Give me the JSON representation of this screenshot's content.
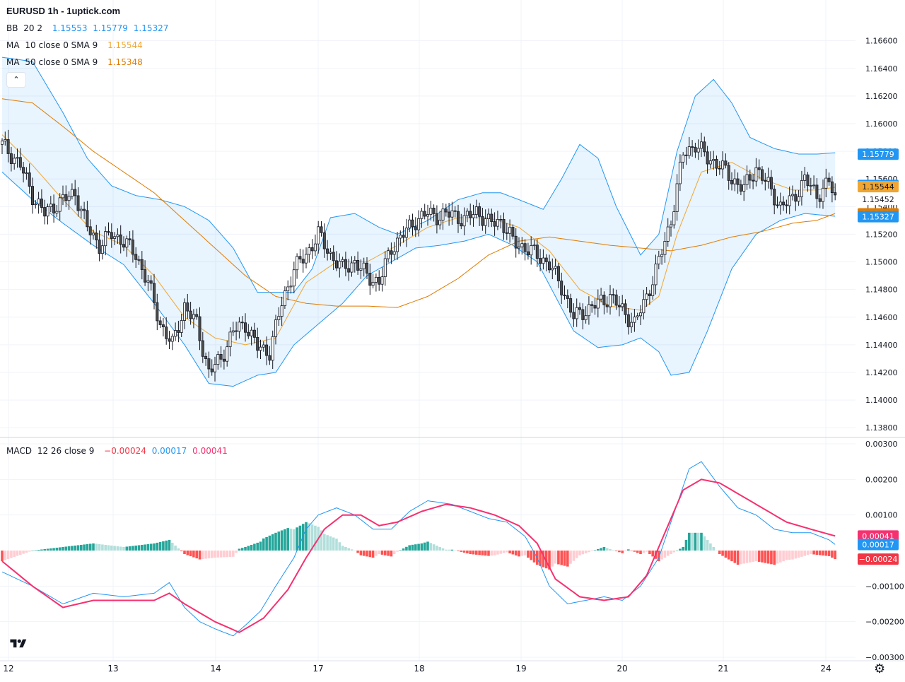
{
  "header": {
    "title": "EURUSD 1h - 1uptick.com",
    "bb": {
      "name": "BB",
      "params": "20 2",
      "values": [
        "1.15553",
        "1.15779",
        "1.15327"
      ],
      "color": "#2196f3"
    },
    "ma10": {
      "name": "MA",
      "params": "10 close 0 SMA 9",
      "value": "1.15544",
      "color": "#f0a630"
    },
    "ma50": {
      "name": "MA",
      "params": "50 close 0 SMA 9",
      "value": "1.15348",
      "color": "#e07b00"
    },
    "macd": {
      "name": "MACD",
      "params": "12 26 close 9",
      "values": [
        "−0.00024",
        "0.00017",
        "0.00041"
      ],
      "colors": [
        "#f23645",
        "#2196f3",
        "#f7306f"
      ]
    }
  },
  "icons": {
    "collapse": "chevron-up-icon",
    "logo": "tradingview-logo-icon",
    "settings": "gear-icon"
  },
  "chart_data": [
    {
      "type": "candlestick",
      "pane": "price",
      "symbol": "EURUSD",
      "interval": "1h",
      "ylim": [
        1.1375,
        1.1668
      ],
      "y_ticks": [
        "1.16600",
        "1.16400",
        "1.16200",
        "1.16000",
        "1.15800",
        "1.15600",
        "1.15400",
        "1.15200",
        "1.15000",
        "1.14800",
        "1.14600",
        "1.14400",
        "1.14200",
        "1.14000",
        "1.13800"
      ],
      "x_ticks": [
        "12",
        "13",
        "14",
        "17",
        "18",
        "19",
        "20",
        "21",
        "24"
      ],
      "close_path": [
        [
          0,
          1.1585
        ],
        [
          6,
          1.157
        ],
        [
          10,
          1.1548
        ],
        [
          14,
          1.1535
        ],
        [
          18,
          1.1542
        ],
        [
          24,
          1.155
        ],
        [
          28,
          1.1525
        ],
        [
          32,
          1.1512
        ],
        [
          36,
          1.152
        ],
        [
          40,
          1.1515
        ],
        [
          44,
          1.1505
        ],
        [
          48,
          1.1485
        ],
        [
          52,
          1.1455
        ],
        [
          56,
          1.144
        ],
        [
          60,
          1.1468
        ],
        [
          64,
          1.1455
        ],
        [
          68,
          1.142
        ],
        [
          72,
          1.143
        ],
        [
          76,
          1.145
        ],
        [
          80,
          1.1455
        ],
        [
          84,
          1.1438
        ],
        [
          88,
          1.1435
        ],
        [
          92,
          1.147
        ],
        [
          96,
          1.1495
        ],
        [
          100,
          1.1505
        ],
        [
          104,
          1.152
        ],
        [
          108,
          1.1505
        ],
        [
          112,
          1.1495
        ],
        [
          116,
          1.15
        ],
        [
          120,
          1.149
        ],
        [
          124,
          1.1485
        ],
        [
          128,
          1.151
        ],
        [
          132,
          1.152
        ],
        [
          136,
          1.153
        ],
        [
          140,
          1.1535
        ],
        [
          144,
          1.1533
        ],
        [
          148,
          1.1535
        ],
        [
          152,
          1.153
        ],
        [
          156,
          1.1537
        ],
        [
          160,
          1.1528
        ],
        [
          164,
          1.153
        ],
        [
          168,
          1.1515
        ],
        [
          172,
          1.151
        ],
        [
          176,
          1.1505
        ],
        [
          180,
          1.1498
        ],
        [
          184,
          1.1482
        ],
        [
          188,
          1.146
        ],
        [
          192,
          1.1465
        ],
        [
          196,
          1.147
        ],
        [
          200,
          1.1475
        ],
        [
          204,
          1.1465
        ],
        [
          208,
          1.1455
        ],
        [
          212,
          1.1475
        ],
        [
          216,
          1.15
        ],
        [
          220,
          1.153
        ],
        [
          224,
          1.1578
        ],
        [
          228,
          1.1585
        ],
        [
          232,
          1.1575
        ],
        [
          236,
          1.157
        ],
        [
          240,
          1.156
        ],
        [
          244,
          1.1553
        ],
        [
          248,
          1.1568
        ],
        [
          252,
          1.1555
        ],
        [
          256,
          1.154
        ],
        [
          260,
          1.1545
        ],
        [
          264,
          1.156
        ],
        [
          268,
          1.1548
        ],
        [
          272,
          1.1558
        ],
        [
          274,
          1.1545
        ]
      ],
      "bb_upper_path": [
        [
          0,
          1.1648
        ],
        [
          10,
          1.1645
        ],
        [
          20,
          1.1608
        ],
        [
          28,
          1.1575
        ],
        [
          36,
          1.1555
        ],
        [
          44,
          1.1548
        ],
        [
          52,
          1.1545
        ],
        [
          60,
          1.154
        ],
        [
          68,
          1.153
        ],
        [
          76,
          1.151
        ],
        [
          84,
          1.1478
        ],
        [
          96,
          1.1478
        ],
        [
          102,
          1.1495
        ],
        [
          108,
          1.1532
        ],
        [
          116,
          1.1535
        ],
        [
          124,
          1.1525
        ],
        [
          130,
          1.152
        ],
        [
          140,
          1.153
        ],
        [
          150,
          1.1545
        ],
        [
          158,
          1.155
        ],
        [
          164,
          1.155
        ],
        [
          170,
          1.1545
        ],
        [
          178,
          1.1538
        ],
        [
          184,
          1.156
        ],
        [
          190,
          1.1585
        ],
        [
          196,
          1.1575
        ],
        [
          202,
          1.154
        ],
        [
          210,
          1.1505
        ],
        [
          216,
          1.152
        ],
        [
          222,
          1.158
        ],
        [
          228,
          1.162
        ],
        [
          234,
          1.1632
        ],
        [
          240,
          1.1615
        ],
        [
          246,
          1.159
        ],
        [
          254,
          1.1582
        ],
        [
          262,
          1.1578
        ],
        [
          268,
          1.1578
        ],
        [
          274,
          1.1579
        ]
      ],
      "bb_middle_path": [
        [
          0,
          1.1605
        ],
        [
          10,
          1.1585
        ],
        [
          20,
          1.1555
        ],
        [
          30,
          1.1532
        ],
        [
          40,
          1.152
        ],
        [
          50,
          1.1505
        ],
        [
          60,
          1.1485
        ],
        [
          70,
          1.146
        ],
        [
          80,
          1.145
        ],
        [
          90,
          1.1455
        ],
        [
          100,
          1.147
        ],
        [
          110,
          1.149
        ],
        [
          120,
          1.15
        ],
        [
          130,
          1.151
        ],
        [
          140,
          1.152
        ],
        [
          150,
          1.1525
        ],
        [
          160,
          1.153
        ],
        [
          170,
          1.1525
        ],
        [
          180,
          1.1515
        ],
        [
          190,
          1.149
        ],
        [
          200,
          1.1475
        ],
        [
          210,
          1.147
        ],
        [
          220,
          1.149
        ],
        [
          230,
          1.1535
        ],
        [
          240,
          1.1568
        ],
        [
          250,
          1.1565
        ],
        [
          260,
          1.1558
        ],
        [
          268,
          1.1555
        ],
        [
          274,
          1.1555
        ]
      ],
      "bb_lower_path": [
        [
          0,
          1.1565
        ],
        [
          10,
          1.1545
        ],
        [
          20,
          1.1528
        ],
        [
          30,
          1.1512
        ],
        [
          40,
          1.1498
        ],
        [
          50,
          1.147
        ],
        [
          60,
          1.144
        ],
        [
          68,
          1.1412
        ],
        [
          76,
          1.141
        ],
        [
          84,
          1.1418
        ],
        [
          90,
          1.142
        ],
        [
          96,
          1.144
        ],
        [
          104,
          1.1455
        ],
        [
          112,
          1.147
        ],
        [
          120,
          1.149
        ],
        [
          128,
          1.15
        ],
        [
          136,
          1.151
        ],
        [
          144,
          1.1512
        ],
        [
          152,
          1.1515
        ],
        [
          160,
          1.152
        ],
        [
          168,
          1.1512
        ],
        [
          176,
          1.15
        ],
        [
          182,
          1.1475
        ],
        [
          188,
          1.145
        ],
        [
          196,
          1.1438
        ],
        [
          204,
          1.144
        ],
        [
          210,
          1.1445
        ],
        [
          216,
          1.1435
        ],
        [
          220,
          1.1418
        ],
        [
          226,
          1.142
        ],
        [
          232,
          1.145
        ],
        [
          240,
          1.1495
        ],
        [
          248,
          1.152
        ],
        [
          256,
          1.153
        ],
        [
          264,
          1.1535
        ],
        [
          274,
          1.1533
        ]
      ],
      "ma10_path": [
        [
          0,
          1.1592
        ],
        [
          10,
          1.157
        ],
        [
          20,
          1.1545
        ],
        [
          30,
          1.1522
        ],
        [
          40,
          1.1512
        ],
        [
          50,
          1.149
        ],
        [
          60,
          1.146
        ],
        [
          70,
          1.1445
        ],
        [
          80,
          1.144
        ],
        [
          90,
          1.1445
        ],
        [
          100,
          1.1485
        ],
        [
          110,
          1.15
        ],
        [
          120,
          1.15
        ],
        [
          130,
          1.1512
        ],
        [
          140,
          1.1525
        ],
        [
          150,
          1.1532
        ],
        [
          160,
          1.1532
        ],
        [
          170,
          1.1525
        ],
        [
          180,
          1.1508
        ],
        [
          190,
          1.148
        ],
        [
          200,
          1.1468
        ],
        [
          210,
          1.1465
        ],
        [
          216,
          1.1475
        ],
        [
          222,
          1.152
        ],
        [
          230,
          1.1565
        ],
        [
          240,
          1.1572
        ],
        [
          250,
          1.156
        ],
        [
          260,
          1.1552
        ],
        [
          268,
          1.1552
        ],
        [
          274,
          1.1554
        ]
      ],
      "ma50_path": [
        [
          0,
          1.1618
        ],
        [
          10,
          1.1615
        ],
        [
          20,
          1.1598
        ],
        [
          30,
          1.158
        ],
        [
          40,
          1.1565
        ],
        [
          50,
          1.155
        ],
        [
          60,
          1.153
        ],
        [
          70,
          1.151
        ],
        [
          80,
          1.149
        ],
        [
          90,
          1.1475
        ],
        [
          100,
          1.147
        ],
        [
          110,
          1.1468
        ],
        [
          120,
          1.1468
        ],
        [
          130,
          1.1467
        ],
        [
          140,
          1.1475
        ],
        [
          150,
          1.1488
        ],
        [
          160,
          1.1505
        ],
        [
          170,
          1.1515
        ],
        [
          180,
          1.1518
        ],
        [
          190,
          1.1515
        ],
        [
          200,
          1.1512
        ],
        [
          210,
          1.151
        ],
        [
          220,
          1.1508
        ],
        [
          230,
          1.1512
        ],
        [
          240,
          1.1518
        ],
        [
          250,
          1.1522
        ],
        [
          260,
          1.1528
        ],
        [
          268,
          1.153
        ],
        [
          274,
          1.1535
        ]
      ],
      "price_labels": [
        {
          "text": "1.15779",
          "value": 1.15779,
          "color": "#2196f3",
          "text_color": "#ffffff"
        },
        {
          "text": "1.15553",
          "value": 1.15553,
          "color": "#2196f3",
          "text_color": "#ffffff"
        },
        {
          "text": "1.15544",
          "value": 1.15544,
          "color": "#f0a630",
          "text_color": "#131722"
        },
        {
          "text": "1.15452",
          "value": 1.15452,
          "color": "#ffffff",
          "text_color": "#131722"
        },
        {
          "text": "1.15348",
          "value": 1.15348,
          "color": "#e07b00",
          "text_color": "#ffffff"
        },
        {
          "text": "1.15327",
          "value": 1.15327,
          "color": "#2196f3",
          "text_color": "#ffffff"
        }
      ]
    },
    {
      "type": "macd",
      "pane": "macd",
      "ylim": [
        -0.003,
        0.003
      ],
      "y_ticks": [
        "0.00300",
        "0.00200",
        "0.00100",
        "−0.00100",
        "−0.00200",
        "−0.00300"
      ],
      "macd_path": [
        [
          0,
          -0.0006
        ],
        [
          10,
          -0.001
        ],
        [
          20,
          -0.0015
        ],
        [
          30,
          -0.0012
        ],
        [
          40,
          -0.0013
        ],
        [
          50,
          -0.0012
        ],
        [
          55,
          -0.0009
        ],
        [
          60,
          -0.0016
        ],
        [
          65,
          -0.002
        ],
        [
          70,
          -0.0022
        ],
        [
          76,
          -0.0024
        ],
        [
          80,
          -0.0021
        ],
        [
          85,
          -0.0017
        ],
        [
          90,
          -0.001
        ],
        [
          96,
          -0.0002
        ],
        [
          100,
          0.0006
        ],
        [
          104,
          0.001
        ],
        [
          110,
          0.0012
        ],
        [
          116,
          0.001
        ],
        [
          122,
          0.0006
        ],
        [
          128,
          0.0006
        ],
        [
          134,
          0.0011
        ],
        [
          140,
          0.0014
        ],
        [
          148,
          0.0013
        ],
        [
          154,
          0.0011
        ],
        [
          160,
          0.0009
        ],
        [
          166,
          0.0008
        ],
        [
          172,
          0.0004
        ],
        [
          176,
          -0.0002
        ],
        [
          180,
          -0.001
        ],
        [
          186,
          -0.0015
        ],
        [
          192,
          -0.0014
        ],
        [
          198,
          -0.0013
        ],
        [
          204,
          -0.0014
        ],
        [
          210,
          -0.001
        ],
        [
          216,
          -0.0002
        ],
        [
          220,
          0.0008
        ],
        [
          226,
          0.0023
        ],
        [
          230,
          0.0025
        ],
        [
          236,
          0.0018
        ],
        [
          242,
          0.0012
        ],
        [
          248,
          0.001
        ],
        [
          254,
          0.0006
        ],
        [
          260,
          0.0005
        ],
        [
          266,
          0.0005
        ],
        [
          272,
          0.0003
        ],
        [
          274,
          0.00017
        ]
      ],
      "signal_path": [
        [
          0,
          -0.0003
        ],
        [
          10,
          -0.001
        ],
        [
          20,
          -0.0016
        ],
        [
          30,
          -0.0014
        ],
        [
          40,
          -0.0014
        ],
        [
          50,
          -0.0014
        ],
        [
          55,
          -0.0012
        ],
        [
          60,
          -0.0015
        ],
        [
          70,
          -0.002
        ],
        [
          78,
          -0.0023
        ],
        [
          86,
          -0.0019
        ],
        [
          94,
          -0.0011
        ],
        [
          100,
          -0.0002
        ],
        [
          106,
          0.0006
        ],
        [
          112,
          0.001
        ],
        [
          118,
          0.001
        ],
        [
          124,
          0.0007
        ],
        [
          130,
          0.0008
        ],
        [
          138,
          0.0011
        ],
        [
          146,
          0.0013
        ],
        [
          154,
          0.0012
        ],
        [
          162,
          0.001
        ],
        [
          170,
          0.0007
        ],
        [
          176,
          0.0002
        ],
        [
          182,
          -0.0008
        ],
        [
          190,
          -0.0013
        ],
        [
          198,
          -0.0014
        ],
        [
          206,
          -0.0013
        ],
        [
          212,
          -0.0007
        ],
        [
          218,
          0.0005
        ],
        [
          224,
          0.0017
        ],
        [
          230,
          0.002
        ],
        [
          236,
          0.0019
        ],
        [
          242,
          0.0016
        ],
        [
          250,
          0.0012
        ],
        [
          258,
          0.0008
        ],
        [
          266,
          0.0006
        ],
        [
          274,
          0.00041
        ]
      ],
      "price_labels": [
        {
          "text": "0.00041",
          "value": 0.00041,
          "color": "#f7306f",
          "text_color": "#ffffff"
        },
        {
          "text": "0.00017",
          "value": 0.00017,
          "color": "#2196f3",
          "text_color": "#ffffff"
        },
        {
          "text": "−0.00024",
          "value": -0.00024,
          "color": "#f23645",
          "text_color": "#ffffff"
        }
      ]
    }
  ]
}
